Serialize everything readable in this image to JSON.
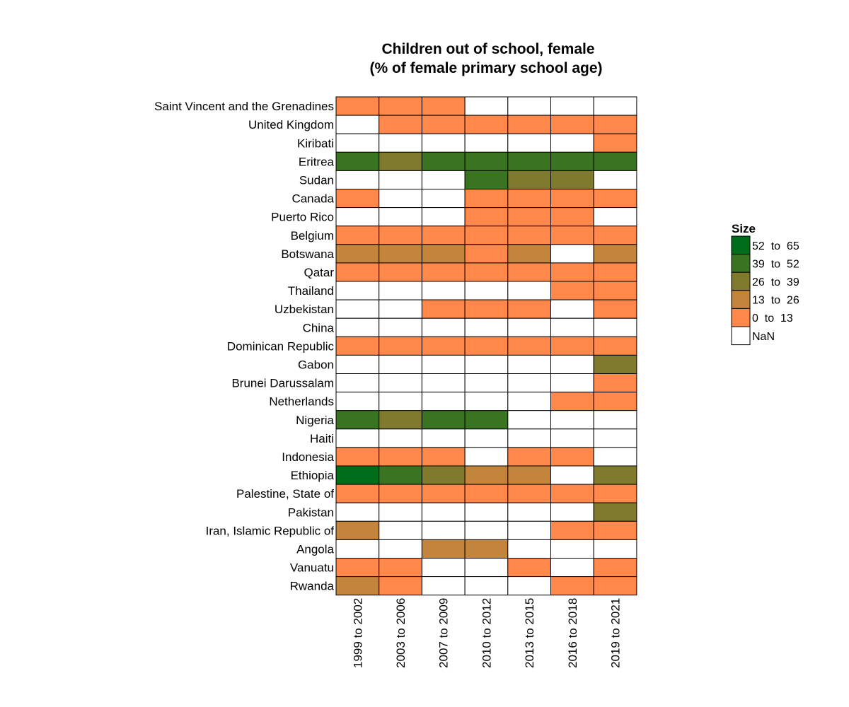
{
  "chart_data": {
    "type": "heatmap",
    "title": [
      "Children out of school, female",
      "(% of female primary school age)"
    ],
    "xlabel": "",
    "ylabel": "",
    "columns": [
      "1999 to 2002",
      "2003 to 2006",
      "2007 to 2009",
      "2010 to 2012",
      "2013 to 2015",
      "2016 to 2018",
      "2019 to 2021"
    ],
    "rows": [
      "Saint Vincent and the Grenadines",
      "United Kingdom",
      "Kiribati",
      "Eritrea",
      "Sudan",
      "Canada",
      "Puerto Rico",
      "Belgium",
      "Botswana",
      "Qatar",
      "Thailand",
      "Uzbekistan",
      "China",
      "Dominican Republic",
      "Gabon",
      "Brunei Darussalam",
      "Netherlands",
      "Nigeria",
      "Haiti",
      "Indonesia",
      "Ethiopia",
      "Palestine, State of",
      "Pakistan",
      "Iran, Islamic Republic of",
      "Angola",
      "Vanuatu",
      "Rwanda"
    ],
    "bins": [
      [
        0,
        0,
        0,
        null,
        null,
        null,
        null
      ],
      [
        null,
        0,
        0,
        0,
        0,
        0,
        0
      ],
      [
        null,
        null,
        null,
        null,
        null,
        null,
        0
      ],
      [
        3,
        2,
        3,
        3,
        3,
        3,
        3
      ],
      [
        null,
        null,
        null,
        3,
        2,
        2,
        null
      ],
      [
        0,
        null,
        null,
        0,
        0,
        0,
        0
      ],
      [
        null,
        null,
        null,
        0,
        0,
        0,
        null
      ],
      [
        0,
        0,
        0,
        0,
        0,
        0,
        0
      ],
      [
        1,
        1,
        1,
        0,
        1,
        null,
        1
      ],
      [
        0,
        0,
        0,
        0,
        0,
        0,
        0
      ],
      [
        null,
        null,
        null,
        null,
        null,
        0,
        0
      ],
      [
        null,
        null,
        0,
        0,
        0,
        null,
        0
      ],
      [
        null,
        null,
        null,
        null,
        null,
        null,
        null
      ],
      [
        0,
        0,
        0,
        0,
        0,
        0,
        0
      ],
      [
        null,
        null,
        null,
        null,
        null,
        null,
        2
      ],
      [
        null,
        null,
        null,
        null,
        null,
        null,
        0
      ],
      [
        null,
        null,
        null,
        null,
        null,
        0,
        0
      ],
      [
        3,
        2,
        3,
        3,
        null,
        null,
        null
      ],
      [
        null,
        null,
        null,
        null,
        null,
        null,
        null
      ],
      [
        0,
        0,
        0,
        null,
        0,
        0,
        null
      ],
      [
        4,
        3,
        2,
        1,
        1,
        null,
        2
      ],
      [
        0,
        0,
        0,
        0,
        0,
        0,
        0
      ],
      [
        null,
        null,
        null,
        null,
        null,
        null,
        2
      ],
      [
        1,
        null,
        null,
        null,
        null,
        0,
        0
      ],
      [
        null,
        null,
        1,
        1,
        null,
        null,
        null
      ],
      [
        0,
        0,
        null,
        null,
        0,
        null,
        0
      ],
      [
        1,
        0,
        null,
        null,
        null,
        0,
        0
      ]
    ],
    "legend": {
      "title": "Size",
      "placement": "right",
      "items": [
        {
          "label": "52  to  65",
          "color": "#006d1a"
        },
        {
          "label": "39  to  52",
          "color": "#3b7421"
        },
        {
          "label": "26  to  39",
          "color": "#7f7a2e"
        },
        {
          "label": "13  to  26",
          "color": "#c3843b"
        },
        {
          "label": "0  to  13",
          "color": "#ff884a"
        },
        {
          "label": "NaN",
          "color": "#ffffff"
        }
      ]
    },
    "bin_colors": [
      "#ff884a",
      "#c3843b",
      "#7f7a2e",
      "#3b7421",
      "#006d1a"
    ],
    "nan_color": "#ffffff"
  }
}
